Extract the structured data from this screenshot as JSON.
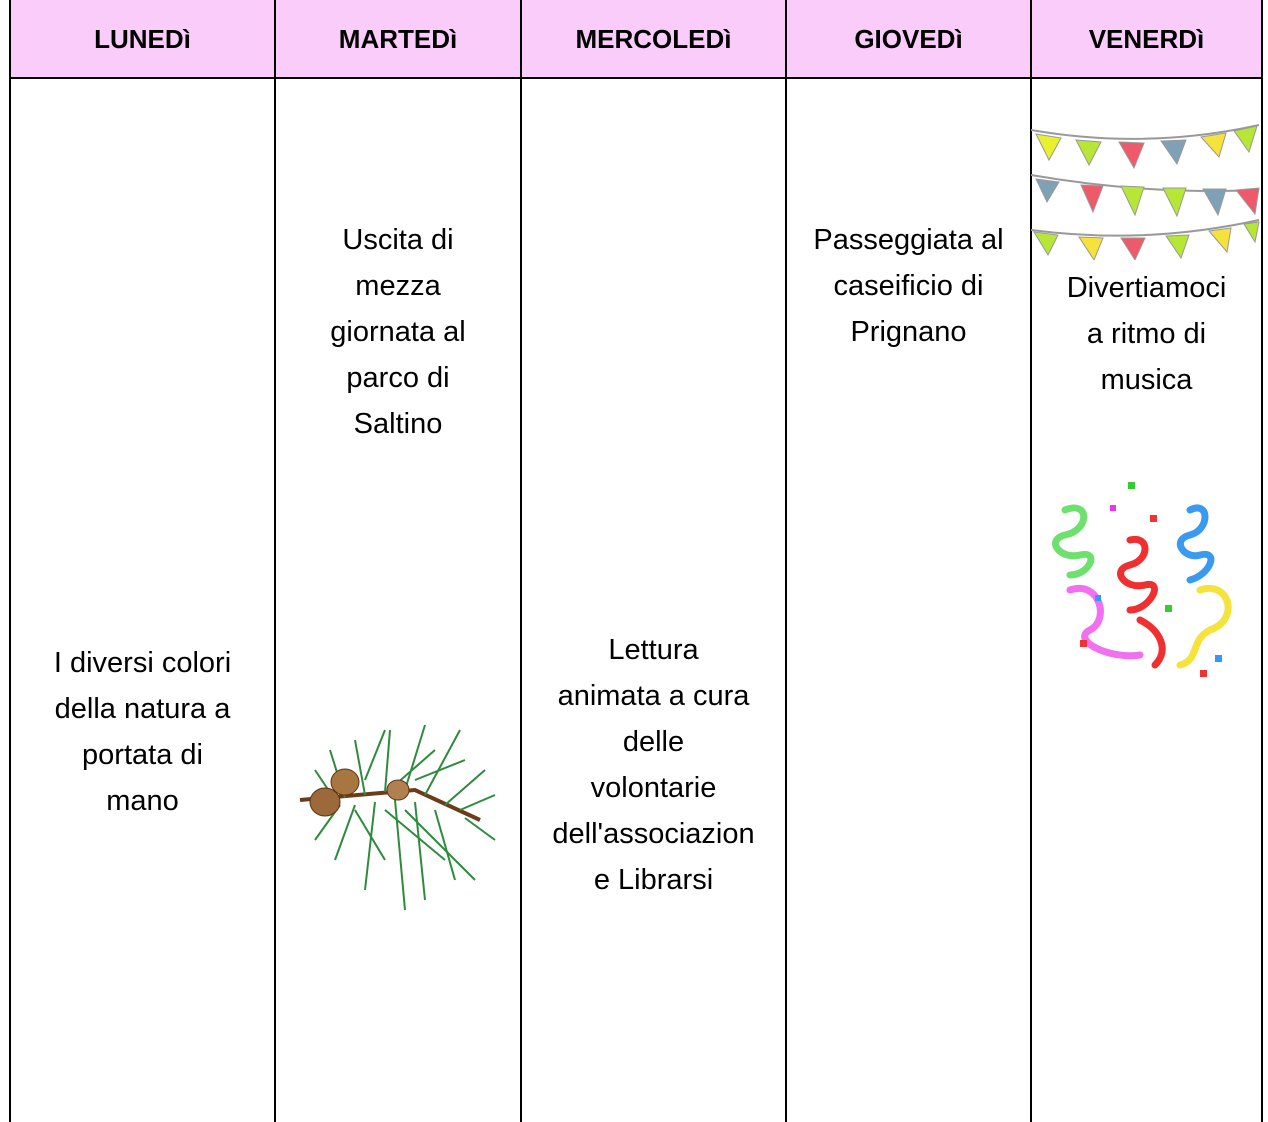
{
  "table": {
    "header": [
      "LUNEDì",
      "MARTEDì",
      "MERCOLEDì",
      "GIOVEDì",
      "VENERDì"
    ],
    "cells": [
      [
        "I diversi colori",
        "della natura a",
        "portata di",
        "mano"
      ],
      [
        "Uscita di",
        "mezza",
        "giornata al",
        "parco di",
        "Saltino"
      ],
      [
        "Lettura",
        "animata a cura",
        "delle",
        "volontarie",
        "dell'associazion",
        "e Librarsi"
      ],
      [
        "Passeggiata al",
        "caseificio di",
        "Prignano"
      ],
      [
        "Divertiamoci",
        "a ritmo di",
        "musica"
      ]
    ]
  }
}
